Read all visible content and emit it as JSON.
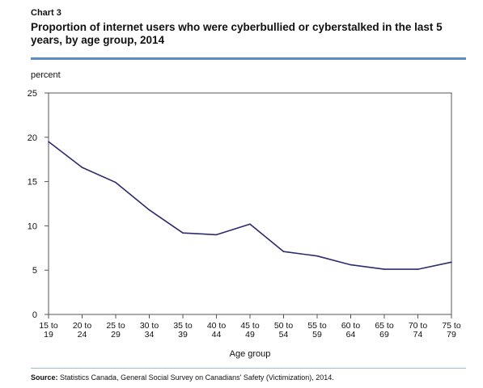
{
  "header": {
    "chart_label": "Chart 3",
    "title": "Proportion of internet users who were cyberbullied or cyberstalked in the last 5 years, by age group, 2014"
  },
  "footer": {
    "source_label": "Source:",
    "source_text": "Statistics Canada, General Social Survey on Canadians' Safety (Victimization), 2014."
  },
  "colors": {
    "line": "#2e2a6e",
    "rule": "#5b8cc6",
    "frame": "#555555"
  },
  "chart_data": {
    "type": "line",
    "ylabel": "percent",
    "xlabel": "Age group",
    "ylim": [
      0,
      25
    ],
    "yticks": [
      0,
      5,
      10,
      15,
      20,
      25
    ],
    "grid": false,
    "categories": [
      [
        "15 to",
        "19"
      ],
      [
        "20 to",
        "24"
      ],
      [
        "25 to",
        "29"
      ],
      [
        "30 to",
        "34"
      ],
      [
        "35 to",
        "39"
      ],
      [
        "40 to",
        "44"
      ],
      [
        "45 to",
        "49"
      ],
      [
        "50 to",
        "54"
      ],
      [
        "55 to",
        "59"
      ],
      [
        "60 to",
        "64"
      ],
      [
        "65 to",
        "69"
      ],
      [
        "70 to",
        "74"
      ],
      [
        "75 to",
        "79"
      ]
    ],
    "series": [
      {
        "values": [
          19.5,
          16.6,
          14.9,
          11.8,
          9.2,
          9.0,
          10.2,
          7.1,
          6.6,
          5.6,
          5.1,
          5.1,
          5.9
        ]
      }
    ]
  }
}
